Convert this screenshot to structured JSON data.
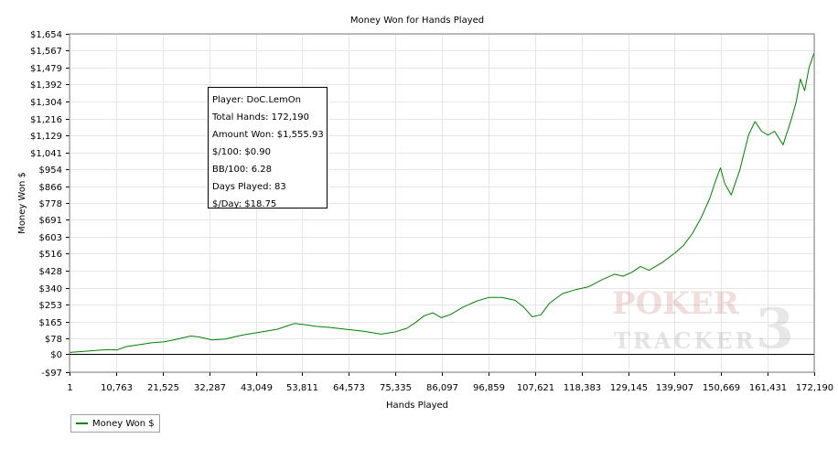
{
  "chart_data": {
    "type": "line",
    "title": "Money Won for Hands Played",
    "xlabel": "Hands Played",
    "ylabel": "Money Won $",
    "xlim": [
      1,
      172190
    ],
    "ylim": [
      -97,
      1654
    ],
    "x_ticks": [
      1,
      10763,
      21525,
      32287,
      43049,
      53811,
      64573,
      75335,
      86097,
      96859,
      107621,
      118383,
      129145,
      139907,
      150669,
      161431,
      172190
    ],
    "x_tick_labels": [
      "1",
      "10,763",
      "21,525",
      "32,287",
      "43,049",
      "53,811",
      "64,573",
      "75,335",
      "86,097",
      "96,859",
      "107,621",
      "118,383",
      "129,145",
      "139,907",
      "150,669",
      "161,431",
      "172,190"
    ],
    "y_ticks": [
      -97,
      0,
      78,
      165,
      253,
      340,
      428,
      516,
      603,
      691,
      778,
      866,
      954,
      1041,
      1129,
      1216,
      1304,
      1392,
      1479,
      1567,
      1654
    ],
    "y_tick_labels": [
      "-$97",
      "$0",
      "$78",
      "$165",
      "$253",
      "$340",
      "$428",
      "$516",
      "$603",
      "$691",
      "$778",
      "$866",
      "$954",
      "$1,041",
      "$1,129",
      "$1,216",
      "$1,304",
      "$1,392",
      "$1,479",
      "$1,567",
      "$1,654"
    ],
    "grid": true,
    "legend_position": "bottom-left",
    "series": [
      {
        "name": "Money Won $",
        "color": "#008000",
        "x": [
          1,
          3000,
          6000,
          9000,
          11000,
          13000,
          16000,
          19000,
          22000,
          25000,
          28000,
          30000,
          33000,
          36000,
          40000,
          44000,
          48000,
          50000,
          52000,
          54000,
          57000,
          60000,
          64000,
          68000,
          72000,
          75000,
          78000,
          80000,
          82000,
          84000,
          86000,
          88000,
          91000,
          94000,
          97000,
          100000,
          103000,
          105000,
          107000,
          109000,
          111000,
          114000,
          117000,
          120000,
          123000,
          126000,
          128000,
          130000,
          132000,
          134000,
          137000,
          140000,
          142000,
          144000,
          146000,
          148000,
          149500,
          150500,
          151500,
          153000,
          155000,
          157000,
          158500,
          160000,
          161500,
          163000,
          165000,
          167000,
          168000,
          169000,
          170000,
          171000,
          172190
        ],
        "y": [
          5,
          10,
          15,
          20,
          18,
          35,
          45,
          55,
          60,
          75,
          90,
          85,
          70,
          75,
          95,
          110,
          125,
          140,
          155,
          150,
          140,
          135,
          125,
          115,
          100,
          110,
          130,
          160,
          195,
          210,
          185,
          200,
          240,
          270,
          290,
          290,
          275,
          240,
          190,
          200,
          260,
          310,
          330,
          345,
          380,
          410,
          400,
          420,
          450,
          430,
          470,
          520,
          560,
          620,
          700,
          800,
          900,
          960,
          880,
          820,
          950,
          1130,
          1200,
          1150,
          1130,
          1150,
          1080,
          1220,
          1300,
          1420,
          1360,
          1480,
          1556
        ]
      }
    ]
  },
  "info": {
    "player": "Player: DoC.LemOn",
    "total_hands": "Total Hands: 172,190",
    "amount_won": "Amount Won: $1,555.93",
    "per100": "$/100: $0.90",
    "bb100": "BB/100: 6.28",
    "days_played": "Days Played: 83",
    "per_day": "$/Day: $18.75"
  },
  "legend": {
    "label": "Money Won $"
  },
  "watermark": {
    "line1": "POKER",
    "line2": "TRACKER",
    "mark": "3"
  }
}
